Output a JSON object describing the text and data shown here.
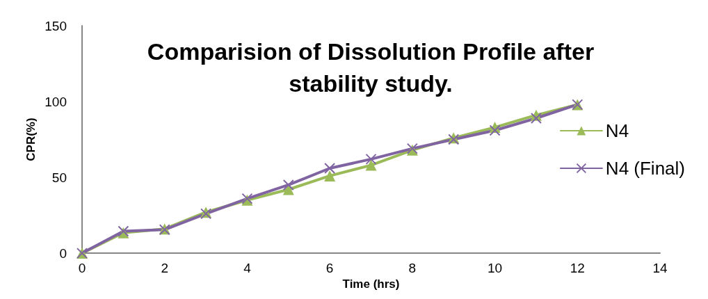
{
  "chart_data": {
    "type": "line",
    "title": "Comparision of Dissolution Profile after\nstability study.",
    "xlabel": "Time (hrs)",
    "ylabel": "CPR(%)",
    "x": [
      0,
      1,
      2,
      3,
      4,
      5,
      6,
      7,
      8,
      9,
      10,
      11,
      12
    ],
    "series": [
      {
        "name": "N4",
        "color": "#9bbb59",
        "marker": "triangle",
        "values": [
          0,
          13.5,
          16,
          27,
          35,
          42,
          51,
          58,
          68,
          76,
          83,
          91,
          98
        ]
      },
      {
        "name": "N4 (Final)",
        "color": "#8064a2",
        "marker": "cross",
        "values": [
          0,
          14.5,
          15.5,
          26,
          36,
          45,
          56,
          62,
          69,
          75,
          81,
          89,
          98
        ]
      }
    ],
    "xlim": [
      0,
      14
    ],
    "xticks": [
      0,
      2,
      4,
      6,
      8,
      10,
      12,
      14
    ],
    "ylim": [
      0,
      150
    ],
    "yticks": [
      0,
      50,
      100,
      150
    ],
    "grid": false,
    "legend": "right",
    "line_style": "solid"
  }
}
